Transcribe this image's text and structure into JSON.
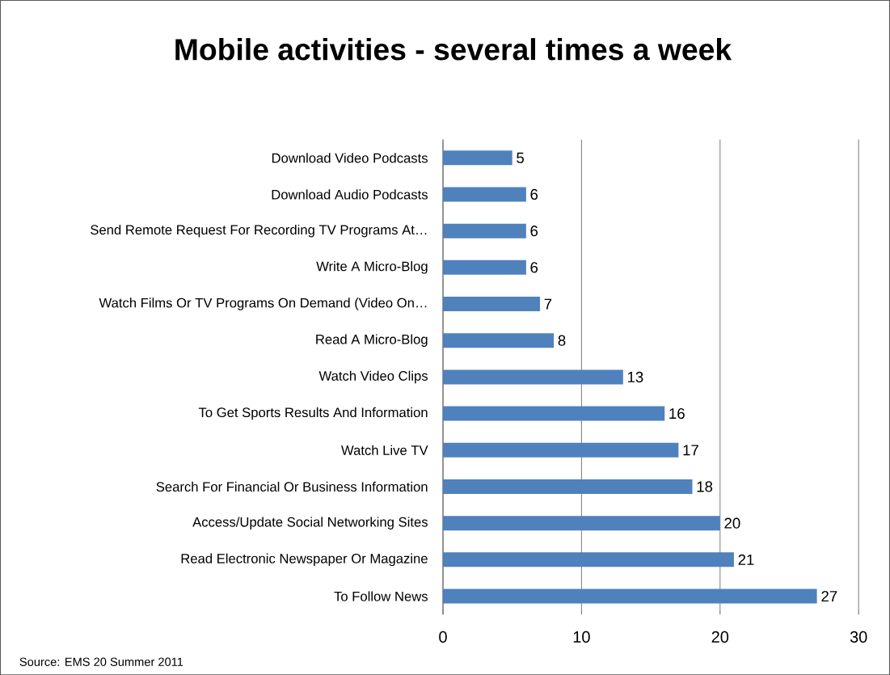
{
  "chart_data": {
    "type": "bar",
    "orientation": "horizontal",
    "title": "Mobile activities - several times a week",
    "categories": [
      "Download Video Podcasts",
      "Download Audio Podcasts",
      "Send Remote Request For Recording TV Programs At…",
      "Write A Micro-Blog",
      "Watch Films Or TV Programs On Demand (Video On…",
      "Read A Micro-Blog",
      "Watch Video Clips",
      "To Get Sports Results And Information",
      "Watch Live TV",
      "Search For Financial Or Business Information",
      "Access/Update Social Networking Sites",
      "Read Electronic Newspaper Or Magazine",
      "To Follow News"
    ],
    "values": [
      5,
      6,
      6,
      6,
      7,
      8,
      13,
      16,
      17,
      18,
      20,
      21,
      27
    ],
    "color": "#4f81bd",
    "data_labels": true,
    "grid": "x",
    "xlim": [
      0,
      30
    ],
    "xticks": [
      0,
      10,
      20,
      30
    ],
    "annotations": [
      "Source: EMS 20 Summer 2011"
    ]
  }
}
